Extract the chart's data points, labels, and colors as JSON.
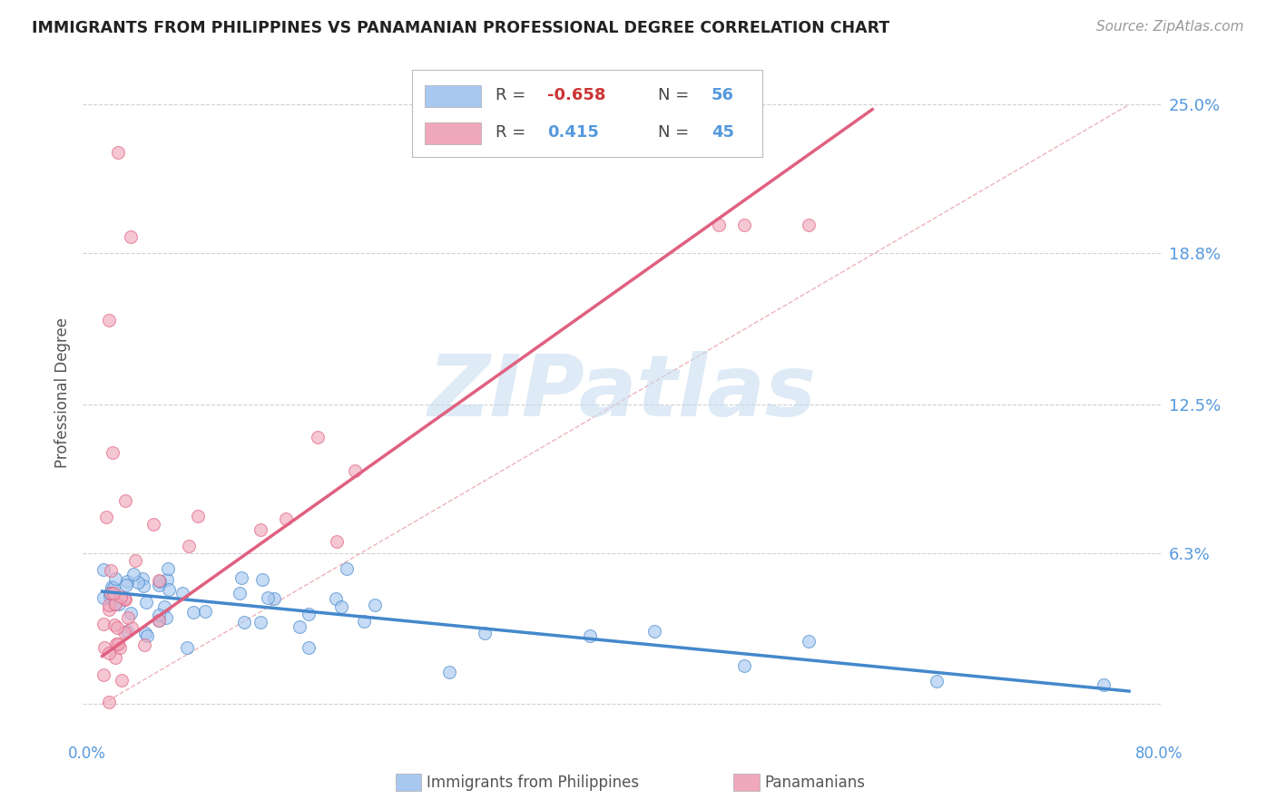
{
  "title": "IMMIGRANTS FROM PHILIPPINES VS PANAMANIAN PROFESSIONAL DEGREE CORRELATION CHART",
  "source": "Source: ZipAtlas.com",
  "ylabel": "Professional Degree",
  "ytick_vals": [
    0.0,
    0.063,
    0.125,
    0.188,
    0.25
  ],
  "ytick_labels": [
    "",
    "6.3%",
    "12.5%",
    "18.8%",
    "25.0%"
  ],
  "xlim": [
    0.0,
    0.8
  ],
  "ylim": [
    0.0,
    0.25
  ],
  "legend_R1": "-0.658",
  "legend_N1": "56",
  "legend_R2": "0.415",
  "legend_N2": "45",
  "blue_color": "#A8C8F0",
  "pink_color": "#F0A8BC",
  "blue_line_color": "#4488CC",
  "pink_line_color": "#E06080",
  "diag_color": "#E8A0A8",
  "grid_color": "#CCCCCC",
  "watermark_color": "#C8DCF0",
  "title_color": "#222222",
  "source_color": "#999999",
  "axis_label_color": "#555555",
  "right_tick_color": "#5599DD",
  "bottom_tick_color": "#5599DD",
  "legend_label_color": "#444444",
  "legend_R1_color": "#CC3333",
  "legend_blue_color": "#5599DD"
}
